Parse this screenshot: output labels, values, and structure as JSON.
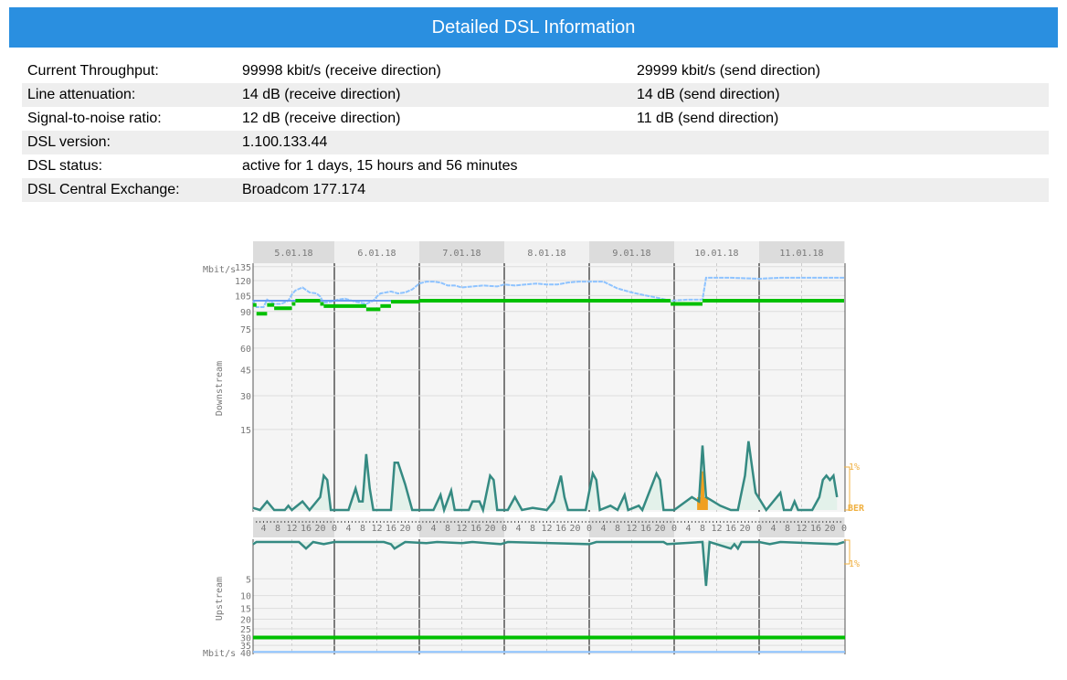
{
  "title": "Detailed DSL Information",
  "rows": [
    {
      "label": "Current Throughput:",
      "rx": "99998 kbit/s (receive direction)",
      "tx": "29999 kbit/s (send direction)"
    },
    {
      "label": "Line attenuation:",
      "rx": "14 dB (receive direction)",
      "tx": "14 dB (send direction)"
    },
    {
      "label": "Signal-to-noise ratio:",
      "rx": "12 dB (receive direction)",
      "tx": "11 dB (send direction)"
    },
    {
      "label": "DSL version:",
      "rx": "1.100.133.44",
      "tx": ""
    },
    {
      "label": "DSL status:",
      "rx": "active for 1 days, 15 hours and 56 minutes",
      "tx": ""
    },
    {
      "label": "DSL Central Exchange:",
      "rx": "Broadcom 177.174",
      "tx": ""
    }
  ],
  "chart_data": {
    "type": "line",
    "days": [
      "5.01.18",
      "6.01.18",
      "7.01.18",
      "8.01.18",
      "9.01.18",
      "10.01.18",
      "11.01.18"
    ],
    "hour_ticks": [
      "0",
      "4",
      "8",
      "12",
      "16",
      "20"
    ],
    "unit": "Mbit/s",
    "down_label": "Downstream",
    "up_label": "Upstream",
    "ber_label": "BER",
    "ber_mark": "1%",
    "down_ticks": [
      135,
      120,
      105,
      90,
      75,
      60,
      45,
      30,
      15
    ],
    "up_ticks": [
      5,
      10,
      15,
      20,
      25,
      30,
      35,
      40
    ],
    "colors": {
      "sync": "#00c000",
      "attainable": "#8ec3ff",
      "ber": "#358a82",
      "ber_fill": "#e3f1ea",
      "error": "#f0a020",
      "mark": "#f0b040"
    },
    "down_sync": [
      [
        1,
        2,
        96
      ],
      [
        2,
        5,
        88
      ],
      [
        5,
        7,
        96
      ],
      [
        7,
        12,
        93
      ],
      [
        12,
        13,
        97
      ],
      [
        13,
        20,
        100
      ],
      [
        20,
        21,
        97
      ],
      [
        21,
        33,
        95
      ],
      [
        33,
        37,
        92
      ],
      [
        37,
        40,
        95
      ],
      [
        40,
        48,
        99
      ],
      [
        48,
        119,
        100
      ],
      [
        119,
        128,
        97
      ],
      [
        128,
        168,
        100
      ]
    ],
    "down_attainable": [
      [
        1,
        100
      ],
      [
        2,
        94
      ],
      [
        4,
        94
      ],
      [
        5,
        101
      ],
      [
        7,
        97
      ],
      [
        9,
        97
      ],
      [
        11,
        100
      ],
      [
        12,
        106
      ],
      [
        13,
        110
      ],
      [
        15,
        113
      ],
      [
        17,
        108
      ],
      [
        19,
        107
      ],
      [
        20,
        104
      ],
      [
        21,
        98
      ],
      [
        23,
        99
      ],
      [
        25,
        101
      ],
      [
        27,
        102
      ],
      [
        30,
        99
      ],
      [
        33,
        97
      ],
      [
        35,
        100
      ],
      [
        36,
        104
      ],
      [
        37,
        107
      ],
      [
        40,
        109
      ],
      [
        42,
        107
      ],
      [
        44,
        108
      ],
      [
        46,
        111
      ],
      [
        48,
        117
      ],
      [
        50,
        119
      ],
      [
        52,
        119
      ],
      [
        54,
        118
      ],
      [
        56,
        115
      ],
      [
        58,
        115
      ],
      [
        60,
        113
      ],
      [
        63,
        114
      ],
      [
        66,
        115
      ],
      [
        70,
        114
      ],
      [
        72,
        116
      ],
      [
        75,
        115
      ],
      [
        78,
        116
      ],
      [
        81,
        117
      ],
      [
        84,
        116
      ],
      [
        87,
        116
      ],
      [
        90,
        118
      ],
      [
        93,
        119
      ],
      [
        96,
        119
      ],
      [
        100,
        119
      ],
      [
        104,
        112
      ],
      [
        108,
        108
      ],
      [
        112,
        105
      ],
      [
        115,
        103
      ],
      [
        119,
        100
      ],
      [
        124,
        101
      ],
      [
        128,
        101
      ],
      [
        129,
        123
      ],
      [
        136,
        123
      ],
      [
        144,
        122
      ],
      [
        150,
        123
      ],
      [
        156,
        123
      ],
      [
        168,
        123
      ]
    ],
    "down_ber": [
      [
        1,
        0.05
      ],
      [
        3,
        0
      ],
      [
        5,
        0.2
      ],
      [
        7,
        0
      ],
      [
        10,
        0
      ],
      [
        11,
        0.1
      ],
      [
        12,
        0
      ],
      [
        15,
        0.2
      ],
      [
        17,
        0
      ],
      [
        20,
        0.3
      ],
      [
        21,
        0.8
      ],
      [
        22,
        0.7
      ],
      [
        23,
        0
      ],
      [
        28,
        0
      ],
      [
        30,
        0.5
      ],
      [
        31,
        0.2
      ],
      [
        32,
        0.2
      ],
      [
        33,
        1.3
      ],
      [
        34,
        0.5
      ],
      [
        35,
        0
      ],
      [
        40,
        0
      ],
      [
        41,
        1.1
      ],
      [
        42,
        1.1
      ],
      [
        44,
        0.6
      ],
      [
        46,
        0
      ],
      [
        52,
        0
      ],
      [
        54,
        0.35
      ],
      [
        55,
        0
      ],
      [
        57,
        0.45
      ],
      [
        58,
        0
      ],
      [
        62,
        0
      ],
      [
        63,
        0.2
      ],
      [
        65,
        0.2
      ],
      [
        66,
        0
      ],
      [
        68,
        0.8
      ],
      [
        69,
        0.7
      ],
      [
        70,
        0
      ],
      [
        73,
        0
      ],
      [
        75,
        0.3
      ],
      [
        77,
        0
      ],
      [
        80,
        0.05
      ],
      [
        84,
        0
      ],
      [
        86,
        0.2
      ],
      [
        88,
        0.8
      ],
      [
        89,
        0.3
      ],
      [
        90,
        0
      ],
      [
        95,
        0
      ],
      [
        97,
        0.85
      ],
      [
        98,
        0.7
      ],
      [
        99,
        0
      ],
      [
        102,
        0.1
      ],
      [
        104,
        0
      ],
      [
        106,
        0.35
      ],
      [
        107,
        0
      ],
      [
        110,
        0.1
      ],
      [
        111,
        0
      ],
      [
        115,
        0.85
      ],
      [
        116,
        0.7
      ],
      [
        117,
        0
      ],
      [
        119,
        0
      ],
      [
        120,
        0
      ],
      [
        125,
        0.3
      ],
      [
        127,
        0.2
      ],
      [
        128,
        1.5
      ],
      [
        129,
        0.3
      ],
      [
        131,
        0.2
      ],
      [
        133,
        0.1
      ],
      [
        136,
        0
      ],
      [
        138,
        0
      ],
      [
        140,
        0.8
      ],
      [
        141,
        1.6
      ],
      [
        143,
        0.4
      ],
      [
        146,
        0
      ],
      [
        150,
        0.4
      ],
      [
        151,
        0
      ],
      [
        153,
        0
      ],
      [
        154,
        0.2
      ],
      [
        155,
        0
      ],
      [
        159,
        0
      ],
      [
        161,
        0.3
      ],
      [
        162,
        0.7
      ],
      [
        163,
        0.8
      ],
      [
        164,
        0.7
      ],
      [
        165,
        0.8
      ],
      [
        166,
        0.3
      ]
    ],
    "down_errors": [
      [
        127,
        0.3
      ],
      [
        128,
        0.9
      ],
      [
        129,
        0.3
      ]
    ],
    "up_ber": [
      [
        1,
        0.1
      ],
      [
        2,
        0
      ],
      [
        14,
        0
      ],
      [
        16,
        0.3
      ],
      [
        18,
        0
      ],
      [
        21,
        0.1
      ],
      [
        24,
        0
      ],
      [
        38,
        0
      ],
      [
        40,
        0.1
      ],
      [
        41,
        0.3
      ],
      [
        44,
        0
      ],
      [
        50,
        0.05
      ],
      [
        53,
        0
      ],
      [
        60,
        0.05
      ],
      [
        63,
        0
      ],
      [
        71,
        0.1
      ],
      [
        73,
        0
      ],
      [
        96,
        0.1
      ],
      [
        98,
        0
      ],
      [
        117,
        0
      ],
      [
        118,
        0.1
      ],
      [
        128,
        0
      ],
      [
        129,
        2
      ],
      [
        130,
        0
      ],
      [
        136,
        0.3
      ],
      [
        137,
        0.1
      ],
      [
        138,
        0.3
      ],
      [
        139,
        0
      ],
      [
        144,
        0
      ],
      [
        147,
        0.1
      ],
      [
        150,
        0
      ],
      [
        166,
        0.1
      ],
      [
        168,
        0
      ]
    ],
    "up_sync": 30,
    "up_attainable": 40
  }
}
